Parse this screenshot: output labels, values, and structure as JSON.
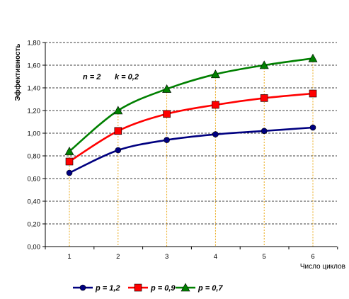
{
  "chart_data": {
    "type": "line",
    "ylabel": "Эффективность",
    "xlabel": "Число циклов",
    "ylim": [
      0,
      1.8
    ],
    "ytick_labels": [
      "0,00",
      "0,20",
      "0,40",
      "0,60",
      "0,80",
      "1,00",
      "1,20",
      "1,40",
      "1,60",
      "1,80"
    ],
    "ytick_values": [
      0,
      0.2,
      0.4,
      0.6,
      0.8,
      1.0,
      1.2,
      1.4,
      1.6,
      1.8
    ],
    "categories": [
      "1",
      "2",
      "3",
      "4",
      "5",
      "6"
    ],
    "x": [
      1,
      2,
      3,
      4,
      5,
      6
    ],
    "grid": "horizontal dashed major lines; vertical dotted drop lines from points",
    "legend_position": "bottom",
    "annotations": [
      {
        "text": "n = 2",
        "id": "n"
      },
      {
        "text": "k = 0,2",
        "id": "k"
      }
    ],
    "series": [
      {
        "name": "p = 1,2",
        "color": "#000080",
        "marker": "circle",
        "values": [
          0.65,
          0.85,
          0.94,
          0.99,
          1.02,
          1.05
        ]
      },
      {
        "name": "p = 0,9",
        "color": "#ff0000",
        "marker": "square",
        "values": [
          0.75,
          1.02,
          1.17,
          1.25,
          1.31,
          1.35
        ]
      },
      {
        "name": "p = 0,7",
        "color": "#008000",
        "marker": "triangle",
        "values": [
          0.84,
          1.2,
          1.39,
          1.52,
          1.6,
          1.66
        ]
      }
    ],
    "droplines_color": "#e8a000"
  }
}
